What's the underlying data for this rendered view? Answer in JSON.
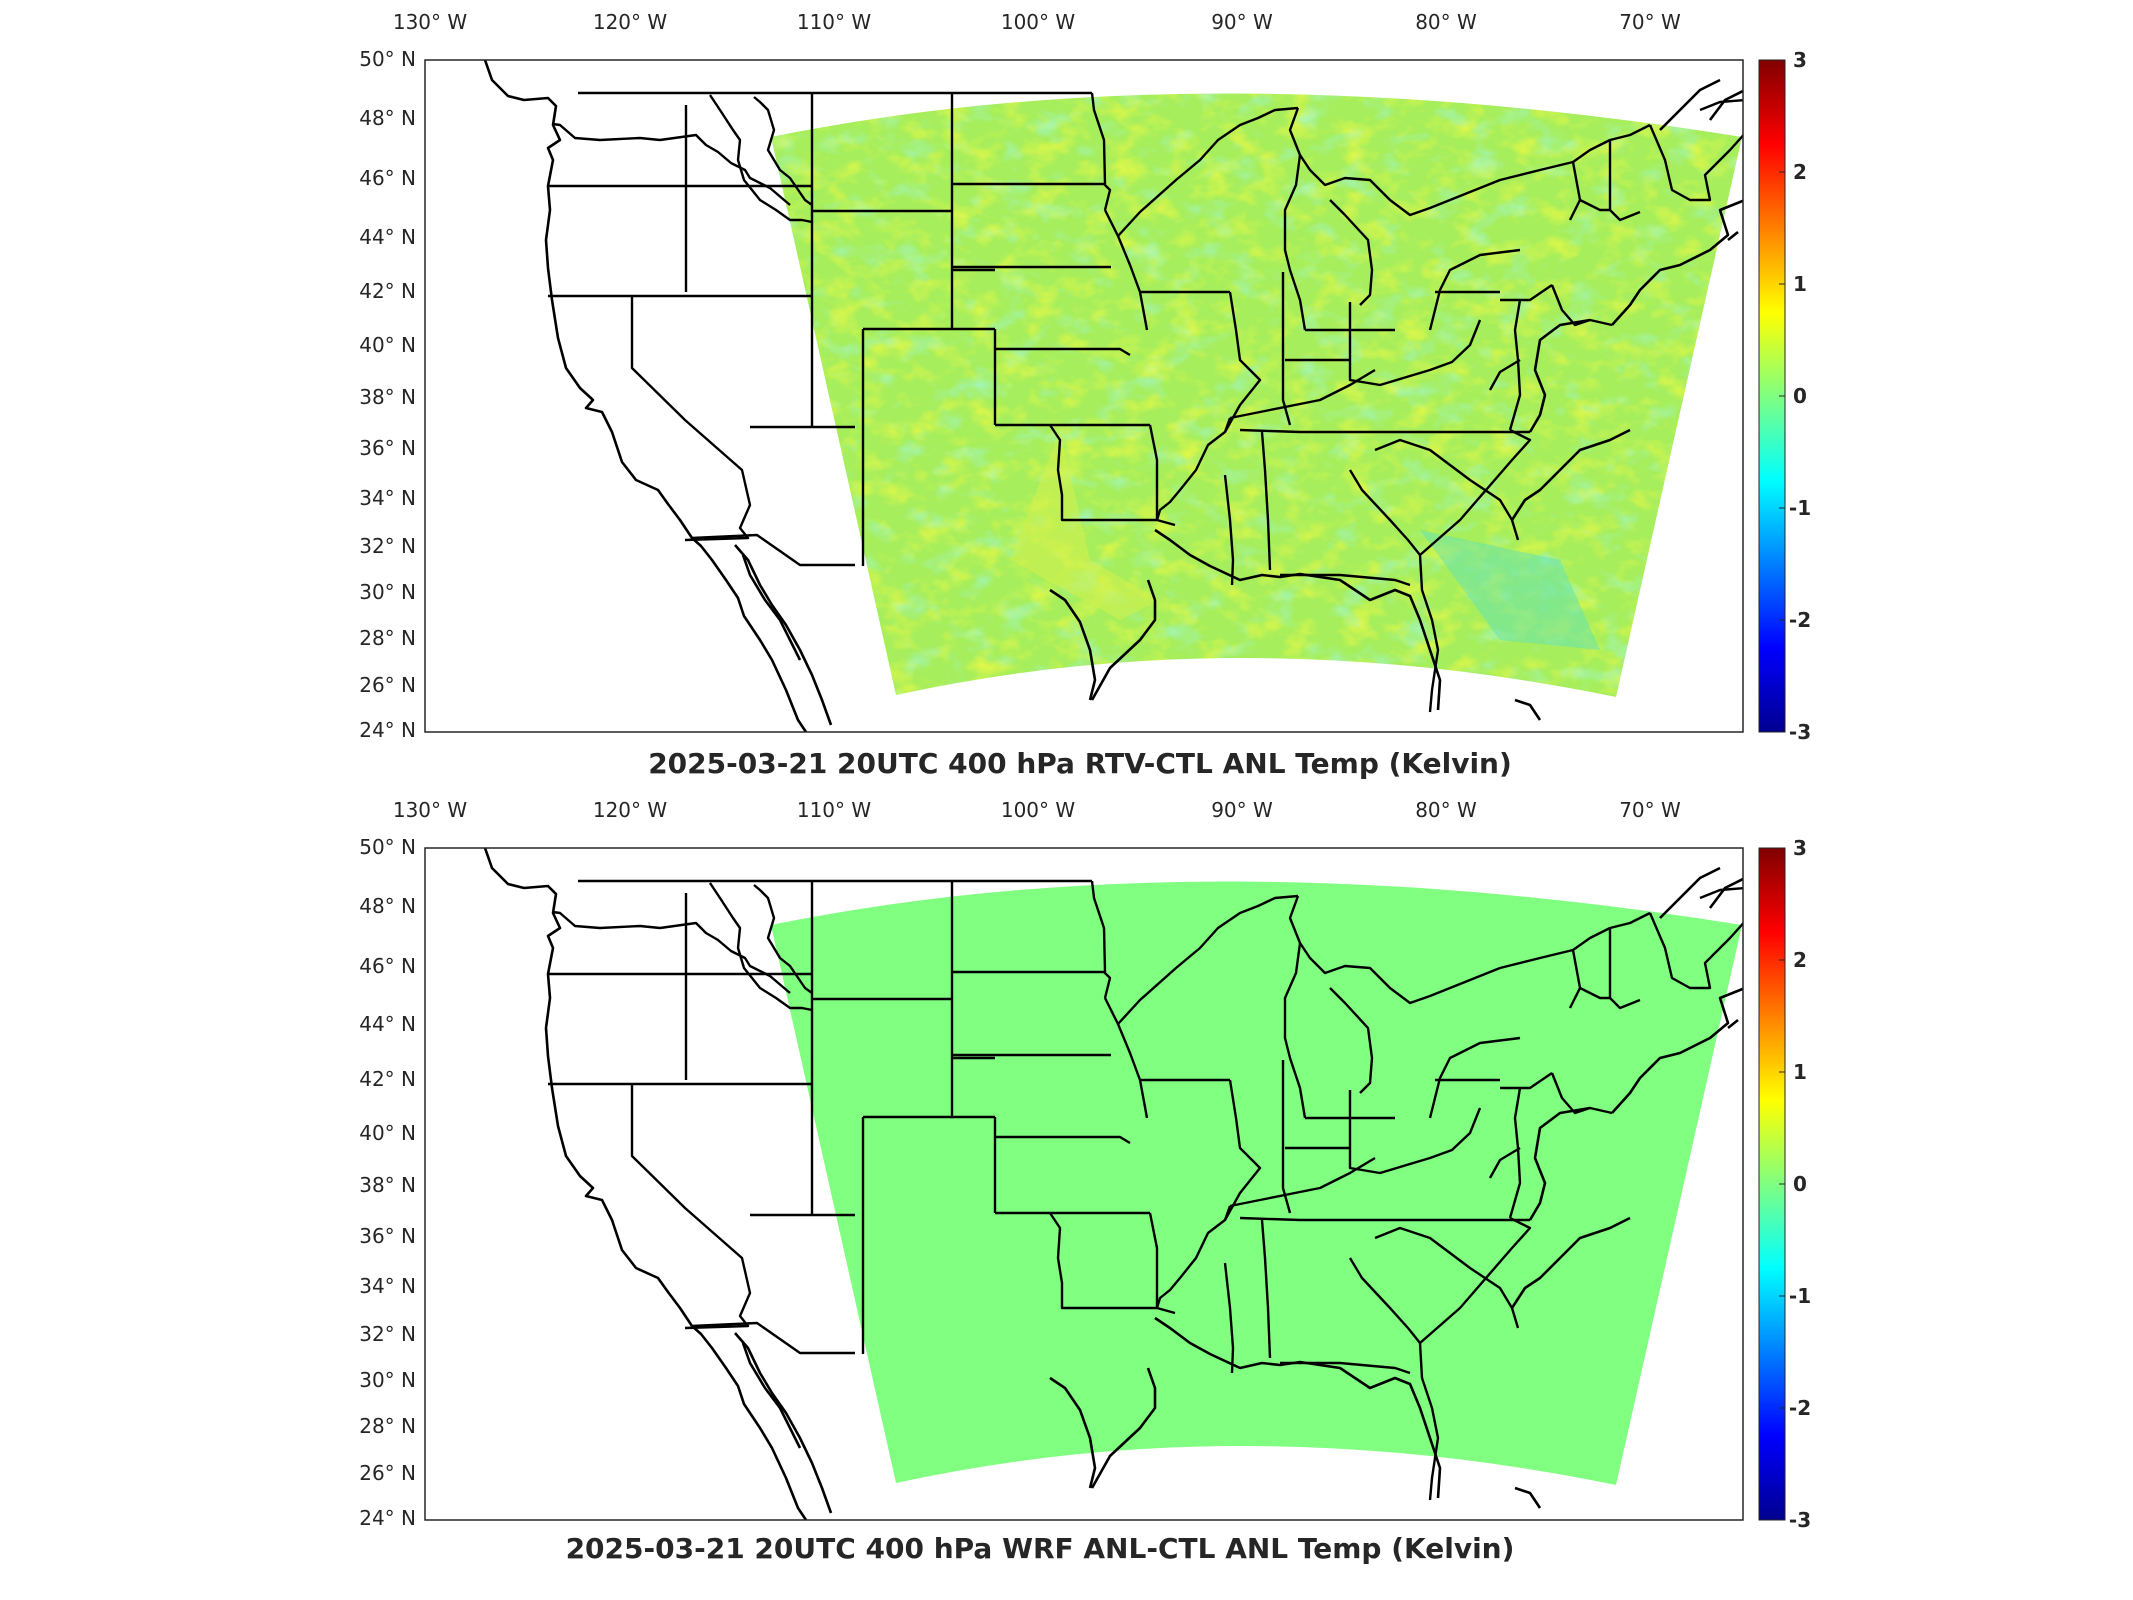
{
  "lon_labels": [
    "130",
    "120",
    "110",
    "100",
    "90",
    "80",
    "70"
  ],
  "lat_labels": [
    "50",
    "48",
    "46",
    "44",
    "42",
    "40",
    "38",
    "36",
    "34",
    "32",
    "30",
    "28",
    "26",
    "24"
  ],
  "lon_suffix": "W",
  "lat_suffix": "N",
  "degree_symbol": "°",
  "colorbar": {
    "ticks": [
      "3",
      "2",
      "1",
      "0",
      "-1",
      "-2",
      "-3"
    ],
    "range": [
      -3,
      3
    ],
    "colormap": "jet"
  },
  "panels": [
    {
      "title": "2025-03-21 20UTC 400 hPa RTV-CTL ANL Temp (Kelvin)",
      "field": "noisy",
      "base_color": "#a6ee5c"
    },
    {
      "title": "2025-03-21 20UTC 400 hPa WRF ANL-CTL ANL Temp (Kelvin)",
      "field": "uniform",
      "base_color": "#80ff80"
    }
  ]
}
